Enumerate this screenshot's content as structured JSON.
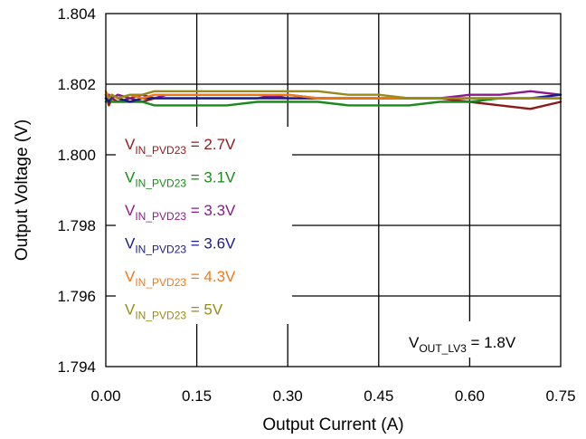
{
  "chart_data": {
    "type": "line",
    "xlabel": "Output Current (A)",
    "ylabel": "Output Voltage (V)",
    "xlim": [
      0,
      0.75
    ],
    "ylim": [
      1.794,
      1.804
    ],
    "xticks": [
      0,
      0.15,
      0.3,
      0.45,
      0.6,
      0.75
    ],
    "xtick_labels": [
      "0.00",
      "0.15",
      "0.30",
      "0.45",
      "0.60",
      "0.75"
    ],
    "yticks": [
      1.794,
      1.796,
      1.798,
      1.8,
      1.802,
      1.804
    ],
    "ytick_labels": [
      "1.794",
      "1.796",
      "1.798",
      "1.800",
      "1.802",
      "1.804"
    ],
    "grid": true,
    "legend_position": "left",
    "series": [
      {
        "name": "V_IN_PVD23 = 2.7V",
        "label_main": "V",
        "label_sub": "IN_PVD23",
        "label_tail": " = 2.7V",
        "color": "#8B1A1A",
        "x": [
          0,
          0.005,
          0.01,
          0.02,
          0.04,
          0.06,
          0.08,
          0.1,
          0.15,
          0.2,
          0.25,
          0.3,
          0.35,
          0.4,
          0.45,
          0.5,
          0.55,
          0.6,
          0.65,
          0.7,
          0.75
        ],
        "y": [
          1.8017,
          1.8014,
          1.8016,
          1.8015,
          1.8016,
          1.8015,
          1.8016,
          1.8016,
          1.8016,
          1.8016,
          1.8016,
          1.8017,
          1.8016,
          1.8016,
          1.8016,
          1.8016,
          1.8016,
          1.8015,
          1.8014,
          1.8013,
          1.8015
        ]
      },
      {
        "name": "V_IN_PVD23 = 3.1V",
        "label_main": "V",
        "label_sub": "IN_PVD23",
        "label_tail": " = 3.1V",
        "color": "#1A8A1A",
        "x": [
          0,
          0.005,
          0.01,
          0.02,
          0.04,
          0.06,
          0.08,
          0.1,
          0.15,
          0.2,
          0.25,
          0.3,
          0.35,
          0.4,
          0.45,
          0.5,
          0.55,
          0.6,
          0.65,
          0.7,
          0.75
        ],
        "y": [
          1.8015,
          1.8016,
          1.8015,
          1.8015,
          1.8015,
          1.8015,
          1.8014,
          1.8014,
          1.8014,
          1.8014,
          1.8015,
          1.8015,
          1.8015,
          1.8014,
          1.8014,
          1.8014,
          1.8015,
          1.8015,
          1.8016,
          1.8016,
          1.8016
        ]
      },
      {
        "name": "V_IN_PVD23 = 3.3V",
        "label_main": "V",
        "label_sub": "IN_PVD23",
        "label_tail": " = 3.3V",
        "color": "#8B1A8B",
        "x": [
          0,
          0.005,
          0.01,
          0.02,
          0.04,
          0.06,
          0.08,
          0.1,
          0.15,
          0.2,
          0.25,
          0.3,
          0.35,
          0.4,
          0.45,
          0.5,
          0.55,
          0.6,
          0.65,
          0.7,
          0.75
        ],
        "y": [
          1.8016,
          1.8017,
          1.8016,
          1.8017,
          1.8016,
          1.8017,
          1.8016,
          1.8017,
          1.8017,
          1.8017,
          1.8017,
          1.8016,
          1.8016,
          1.8016,
          1.8016,
          1.8016,
          1.8016,
          1.8017,
          1.8017,
          1.8018,
          1.8017
        ]
      },
      {
        "name": "V_IN_PVD23 = 3.6V",
        "label_main": "V",
        "label_sub": "IN_PVD23",
        "label_tail": " = 3.6V",
        "color": "#1A1A8B",
        "x": [
          0,
          0.005,
          0.01,
          0.02,
          0.04,
          0.06,
          0.08,
          0.1,
          0.15,
          0.2,
          0.25,
          0.3,
          0.35,
          0.4,
          0.45,
          0.5,
          0.55,
          0.6,
          0.65,
          0.7,
          0.75
        ],
        "y": [
          1.8016,
          1.8015,
          1.8017,
          1.8016,
          1.8015,
          1.8016,
          1.8016,
          1.8016,
          1.8016,
          1.8016,
          1.8016,
          1.8016,
          1.8016,
          1.8016,
          1.8016,
          1.8016,
          1.8016,
          1.8016,
          1.8016,
          1.8016,
          1.8017
        ]
      },
      {
        "name": "V_IN_PVD23 = 4.3V",
        "label_main": "V",
        "label_sub": "IN_PVD23",
        "label_tail": " = 4.3V",
        "color": "#F07A1A",
        "x": [
          0,
          0.005,
          0.01,
          0.02,
          0.04,
          0.06,
          0.08,
          0.1,
          0.15,
          0.2,
          0.25,
          0.3,
          0.35,
          0.4,
          0.45,
          0.5,
          0.55,
          0.6,
          0.65,
          0.7,
          0.75
        ],
        "y": [
          1.8018,
          1.8016,
          1.8017,
          1.8016,
          1.8017,
          1.8016,
          1.8017,
          1.8017,
          1.8017,
          1.8017,
          1.8017,
          1.8017,
          1.8016,
          1.8016,
          1.8016,
          1.8016,
          1.8016,
          1.8016,
          1.8016,
          1.8016,
          1.8016
        ]
      },
      {
        "name": "V_IN_PVD23 = 5V",
        "label_main": "V",
        "label_sub": "IN_PVD23",
        "label_tail": " = 5V",
        "color": "#9A8A1A",
        "x": [
          0,
          0.005,
          0.01,
          0.02,
          0.04,
          0.06,
          0.08,
          0.1,
          0.15,
          0.2,
          0.25,
          0.3,
          0.35,
          0.4,
          0.45,
          0.5,
          0.55,
          0.6,
          0.65,
          0.7,
          0.75
        ],
        "y": [
          1.8017,
          1.8016,
          1.8017,
          1.8016,
          1.8017,
          1.8017,
          1.8018,
          1.8018,
          1.8018,
          1.8018,
          1.8018,
          1.8018,
          1.8018,
          1.8017,
          1.8017,
          1.8016,
          1.8016,
          1.8016,
          1.8016,
          1.8016,
          1.8016
        ]
      }
    ],
    "annotation": {
      "main": "V",
      "sub": "OUT_LV3",
      "tail": " = 1.8V"
    }
  }
}
